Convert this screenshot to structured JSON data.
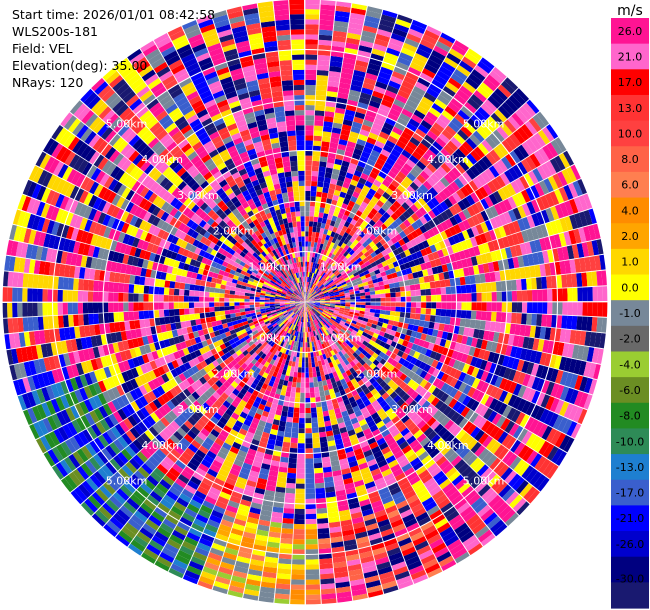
{
  "header": {
    "start_time": "Start time: 2026/01/01 08:42:58",
    "instrument": "WLS200s-181",
    "field": "Field: VEL",
    "elevation": "Elevation(deg): 35.00",
    "nrays": "NRays: 120"
  },
  "chart_data": {
    "type": "heatmap",
    "projection": "polar-ppi",
    "title": "",
    "n_rays": 120,
    "n_gates": 60,
    "max_range_km": 6.0,
    "range_rings_km": [
      1,
      2,
      3,
      4,
      5,
      6
    ],
    "range_labels": [
      "1.00km",
      "2.00km",
      "3.00km",
      "4.00km",
      "5.00km"
    ],
    "colorbar": {
      "unit": "m/s",
      "ticks": [
        "26.0",
        "21.0",
        "17.0",
        "13.0",
        "10.0",
        "8.0",
        "6.0",
        "4.0",
        "2.0",
        "1.0",
        "0.0",
        "-1.0",
        "-2.0",
        "-4.0",
        "-6.0",
        "-8.0",
        "-10.0",
        "-13.0",
        "-17.0",
        "-21.0",
        "-26.0",
        "-30.0"
      ],
      "colors": [
        "#ff1493",
        "#ff66cc",
        "#ff0000",
        "#ff3333",
        "#ff4040",
        "#ff6347",
        "#ff7f50",
        "#ff8c00",
        "#ffa500",
        "#ffd700",
        "#ffff00",
        "#778899",
        "#696969",
        "#9acd32",
        "#6b8e23",
        "#228b22",
        "#2e8b57",
        "#1e7fd0",
        "#3a5fcd",
        "#0000ff",
        "#0000cd",
        "#000080",
        "#191970"
      ]
    }
  }
}
